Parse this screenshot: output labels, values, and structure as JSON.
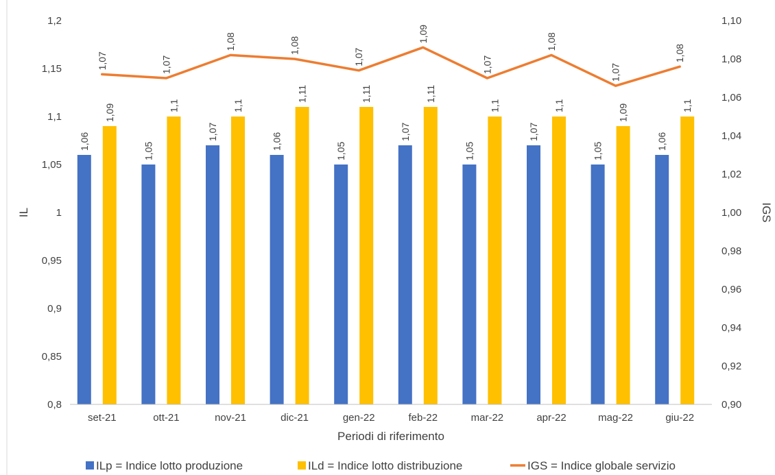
{
  "chart_data": {
    "type": "bar",
    "title": "",
    "xlabel": "Periodi di riferimento",
    "ylabel": "IL",
    "y2label": "IGS",
    "ylim": [
      0.8,
      1.2
    ],
    "y2lim": [
      0.9,
      1.1
    ],
    "yticks": [
      "0,8",
      "0,85",
      "0,9",
      "0,95",
      "1",
      "1,05",
      "1,1",
      "1,15",
      "1,2"
    ],
    "y2ticks": [
      "0,90",
      "0,92",
      "0,94",
      "0,96",
      "0,98",
      "1,00",
      "1,02",
      "1,04",
      "1,06",
      "1,08",
      "1,10"
    ],
    "grid": false,
    "legend_position": "bottom",
    "categories": [
      "set-21",
      "ott-21",
      "nov-21",
      "dic-21",
      "gen-22",
      "feb-22",
      "mar-22",
      "apr-22",
      "mag-22",
      "giu-22"
    ],
    "series": [
      {
        "name": "ILp = Indice lotto produzione",
        "kind": "bar",
        "axis": "left",
        "color": "#4472c4",
        "values": [
          1.06,
          1.05,
          1.07,
          1.06,
          1.05,
          1.07,
          1.05,
          1.07,
          1.05,
          1.06
        ],
        "labels": [
          "1,06",
          "1,05",
          "1,07",
          "1,06",
          "1,05",
          "1,07",
          "1,05",
          "1,07",
          "1,05",
          "1,06"
        ]
      },
      {
        "name": "ILd = Indice lotto distribuzione",
        "kind": "bar",
        "axis": "left",
        "color": "#ffc000",
        "values": [
          1.09,
          1.1,
          1.1,
          1.11,
          1.11,
          1.11,
          1.1,
          1.1,
          1.09,
          1.1
        ],
        "labels": [
          "1,09",
          "1,1",
          "1,1",
          "1,11",
          "1,11",
          "1,11",
          "1,1",
          "1,1",
          "1,09",
          "1,1"
        ]
      },
      {
        "name": "IGS = Indice globale servizio",
        "kind": "line",
        "axis": "right",
        "color": "#ed7d31",
        "values": [
          1.072,
          1.07,
          1.082,
          1.08,
          1.074,
          1.086,
          1.07,
          1.082,
          1.066,
          1.076
        ],
        "labels": [
          "1,07",
          "1,07",
          "1,08",
          "1,08",
          "1,07",
          "1,09",
          "1,07",
          "1,08",
          "1,07",
          "1,08"
        ]
      }
    ]
  }
}
